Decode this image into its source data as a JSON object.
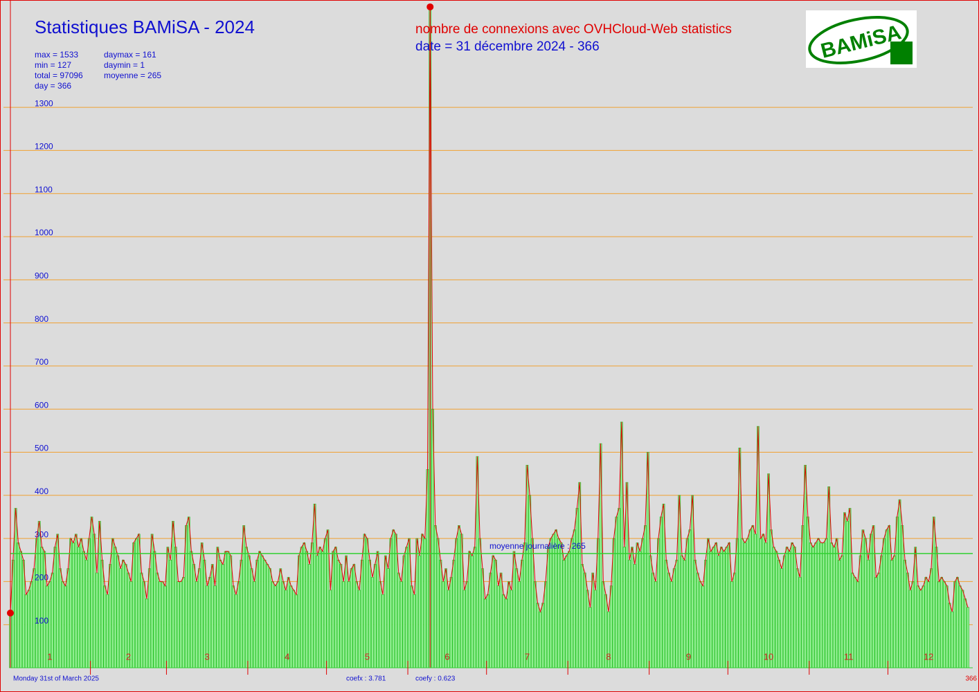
{
  "chart_data": {
    "type": "bar",
    "title": "Statistiques BAMiSA - 2024",
    "subtitle": "nombre de connexions avec OVHCloud-Web statistics",
    "date_line": "date = 31 décembre 2024 - 366",
    "logo": "BAMiSA",
    "stats": [
      "max = 1533",
      "min = 127",
      "total = 97096",
      "day = 366",
      "daymax = 161",
      "daymin = 1",
      "moyenne = 265"
    ],
    "footer_date": "Monday 31st of March 2025",
    "coefx": "coefx : 3.781",
    "coefy": "coefy : 0.623",
    "last_day": "366",
    "mean_line": {
      "label": "moyenne journalière : 265",
      "value": 265
    },
    "month_labels": [
      1,
      2,
      3,
      4,
      5,
      6,
      7,
      8,
      9,
      10,
      11,
      12
    ],
    "ylim": [
      0,
      1549
    ],
    "yticks": [
      100,
      200,
      300,
      400,
      500,
      600,
      700,
      800,
      900,
      1000,
      1100,
      1200,
      1300
    ],
    "grid": true,
    "bar_color": "#90ee90",
    "line_color": "#e00000",
    "values": [
      127,
      250,
      370,
      290,
      270,
      250,
      170,
      180,
      200,
      230,
      300,
      340,
      280,
      270,
      190,
      200,
      220,
      280,
      310,
      230,
      200,
      190,
      230,
      300,
      290,
      310,
      280,
      300,
      270,
      250,
      300,
      350,
      310,
      220,
      340,
      250,
      190,
      170,
      240,
      300,
      280,
      260,
      230,
      250,
      240,
      220,
      200,
      290,
      300,
      310,
      220,
      200,
      160,
      230,
      310,
      270,
      220,
      200,
      200,
      190,
      280,
      250,
      340,
      280,
      200,
      200,
      210,
      330,
      350,
      270,
      240,
      200,
      230,
      290,
      250,
      190,
      210,
      240,
      190,
      280,
      250,
      240,
      270,
      270,
      260,
      190,
      170,
      200,
      250,
      330,
      280,
      260,
      230,
      200,
      250,
      270,
      260,
      250,
      240,
      230,
      200,
      190,
      200,
      230,
      200,
      180,
      210,
      190,
      180,
      170,
      260,
      280,
      290,
      270,
      240,
      290,
      380,
      260,
      280,
      270,
      300,
      320,
      180,
      270,
      280,
      250,
      240,
      200,
      260,
      200,
      230,
      240,
      200,
      180,
      250,
      310,
      300,
      250,
      210,
      240,
      270,
      200,
      170,
      260,
      230,
      300,
      320,
      310,
      220,
      200,
      260,
      280,
      300,
      190,
      170,
      300,
      260,
      310,
      300,
      460,
      1533,
      600,
      330,
      300,
      250,
      200,
      230,
      180,
      210,
      250,
      300,
      330,
      310,
      180,
      200,
      270,
      260,
      280,
      490,
      300,
      230,
      160,
      170,
      220,
      260,
      250,
      190,
      220,
      170,
      160,
      200,
      180,
      270,
      230,
      200,
      250,
      290,
      470,
      400,
      300,
      200,
      150,
      130,
      150,
      200,
      280,
      300,
      310,
      320,
      300,
      290,
      250,
      260,
      270,
      300,
      320,
      370,
      430,
      240,
      220,
      180,
      140,
      220,
      180,
      300,
      520,
      200,
      170,
      130,
      190,
      300,
      350,
      370,
      570,
      280,
      430,
      250,
      280,
      240,
      290,
      270,
      300,
      330,
      500,
      260,
      220,
      200,
      300,
      350,
      380,
      250,
      220,
      200,
      230,
      250,
      400,
      260,
      250,
      300,
      320,
      400,
      250,
      220,
      200,
      190,
      250,
      300,
      270,
      280,
      290,
      260,
      280,
      270,
      280,
      290,
      200,
      220,
      300,
      510,
      300,
      290,
      300,
      320,
      330,
      310,
      560,
      300,
      310,
      290,
      450,
      320,
      280,
      270,
      250,
      230,
      260,
      280,
      270,
      290,
      280,
      230,
      210,
      330,
      470,
      350,
      290,
      280,
      290,
      300,
      290,
      290,
      300,
      420,
      290,
      280,
      300,
      250,
      260,
      360,
      340,
      370,
      220,
      210,
      200,
      260,
      320,
      300,
      250,
      310,
      330,
      210,
      220,
      260,
      300,
      320,
      330,
      250,
      260,
      350,
      390,
      330,
      250,
      220,
      180,
      200,
      280,
      190,
      180,
      190,
      210,
      200,
      230,
      350,
      280,
      200,
      210,
      200,
      190,
      150,
      130,
      200,
      210,
      190,
      180,
      160,
      140
    ]
  }
}
